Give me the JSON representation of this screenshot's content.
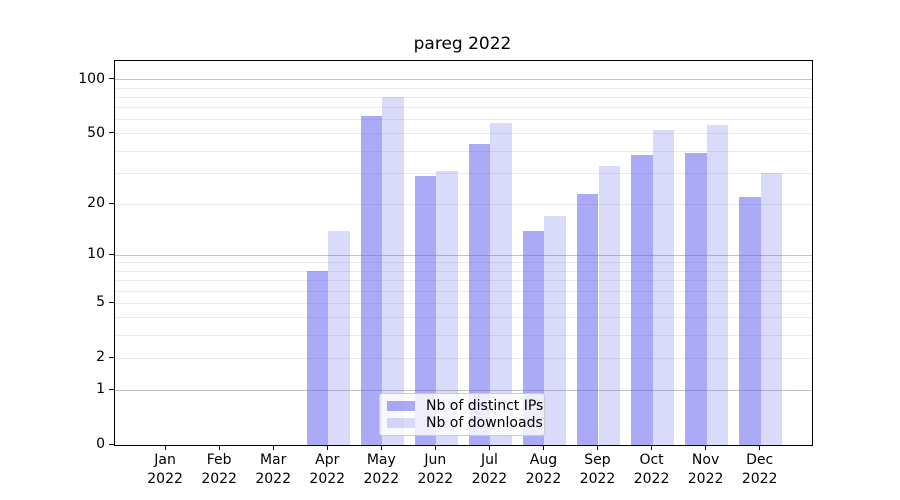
{
  "title": "pareg 2022",
  "colors": {
    "distinct_ips": "rgba(85,85,238,0.5)",
    "downloads": "rgba(85,85,238,0.22)",
    "grid_minor": "#ebebeb",
    "grid_major": "#c3c3c3",
    "axis": "#000000",
    "legend_border": "#cccccc"
  },
  "legend": {
    "items": [
      {
        "label": "Nb of distinct IPs",
        "series": "distinct_ips"
      },
      {
        "label": "Nb of downloads",
        "series": "downloads"
      }
    ],
    "position": "lower center"
  },
  "y_axis": {
    "ticks": [
      {
        "label": "100",
        "value": 100
      },
      {
        "label": "50",
        "value": 50
      },
      {
        "label": "20",
        "value": 20
      },
      {
        "label": "10",
        "value": 10
      },
      {
        "label": "5",
        "value": 5
      },
      {
        "label": "2",
        "value": 2
      },
      {
        "label": "1",
        "value": 1
      },
      {
        "label": "0",
        "value": 0
      }
    ],
    "major_grid_values": [
      1,
      10,
      100
    ],
    "minor_grid_values": [
      2,
      3,
      4,
      5,
      6,
      7,
      8,
      9,
      20,
      30,
      40,
      50,
      60,
      70,
      80,
      90
    ]
  },
  "chart_data": {
    "type": "bar",
    "title": "pareg 2022",
    "categories": [
      "Jan 2022",
      "Feb 2022",
      "Mar 2022",
      "Apr 2022",
      "May 2022",
      "Jun 2022",
      "Jul 2022",
      "Aug 2022",
      "Sep 2022",
      "Oct 2022",
      "Nov 2022",
      "Dec 2022"
    ],
    "series": [
      {
        "name": "Nb of distinct IPs",
        "values": [
          0,
          0,
          0,
          8,
          63,
          29,
          44,
          14,
          23,
          38,
          39,
          22
        ]
      },
      {
        "name": "Nb of downloads",
        "values": [
          0,
          0,
          0,
          14,
          80,
          31,
          58,
          17,
          33,
          53,
          56,
          30
        ]
      }
    ],
    "xlabel": "",
    "ylabel": "",
    "yscale": "symlog (log-like with linear zero region, gridlines at 1-100 decades)",
    "y_tick_values": [
      0,
      1,
      2,
      5,
      10,
      20,
      50,
      100
    ],
    "ylim": [
      0,
      127
    ],
    "grid": "horizontal only, minor + major log gridlines",
    "legend_position": "lower center"
  }
}
